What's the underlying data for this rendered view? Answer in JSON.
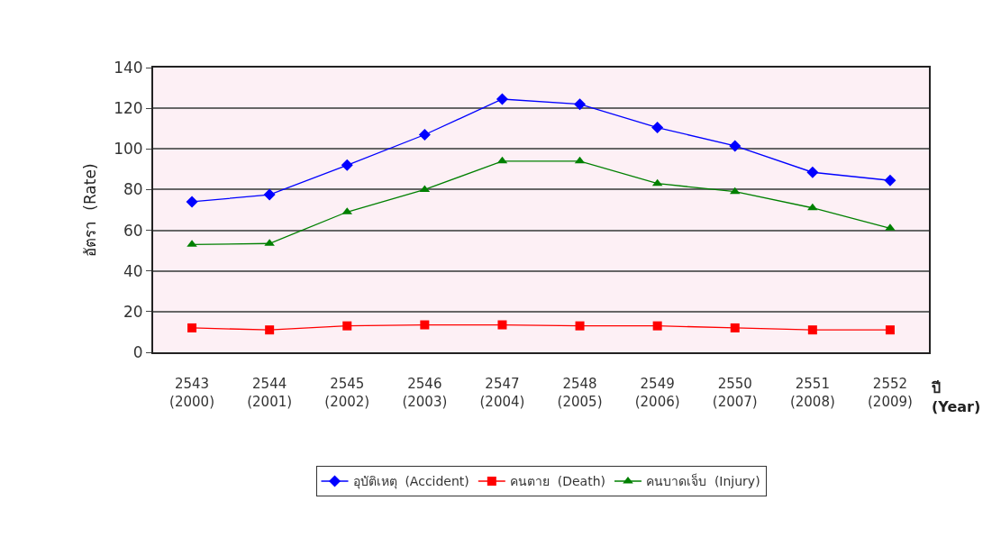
{
  "chart_data": {
    "type": "line",
    "categories": [
      "2543\n(2000)",
      "2544\n(2001)",
      "2545\n(2002)",
      "2546\n(2003)",
      "2547\n(2004)",
      "2548\n(2005)",
      "2549\n(2006)",
      "2550\n(2007)",
      "2551\n(2008)",
      "2552\n(2009)"
    ],
    "xlabel": "ปี\n(Year)",
    "ylabel": "อัตรา  (Rate)",
    "series": [
      {
        "name": "อุบัติเหตุ  (Accident)",
        "color": "#0000ff",
        "marker": "diamond",
        "values": [
          74,
          77.5,
          92,
          107,
          124.5,
          122,
          110.5,
          101.5,
          88.5,
          84.5
        ]
      },
      {
        "name": "คนตาย  (Death)",
        "color": "#ff0000",
        "marker": "square",
        "values": [
          12,
          11,
          13,
          13.5,
          13.5,
          13,
          13,
          12,
          11,
          11
        ]
      },
      {
        "name": "คนบาดเจ็บ  (Injury)",
        "color": "#008000",
        "marker": "triangle",
        "values": [
          53,
          53.5,
          69,
          80,
          94,
          94,
          83,
          79,
          71,
          61
        ]
      }
    ],
    "ylim": [
      0,
      140
    ],
    "yticks": [
      0,
      20,
      40,
      60,
      80,
      100,
      120,
      140
    ],
    "grid": "y",
    "legend": "bottom",
    "line_style": "solid"
  }
}
